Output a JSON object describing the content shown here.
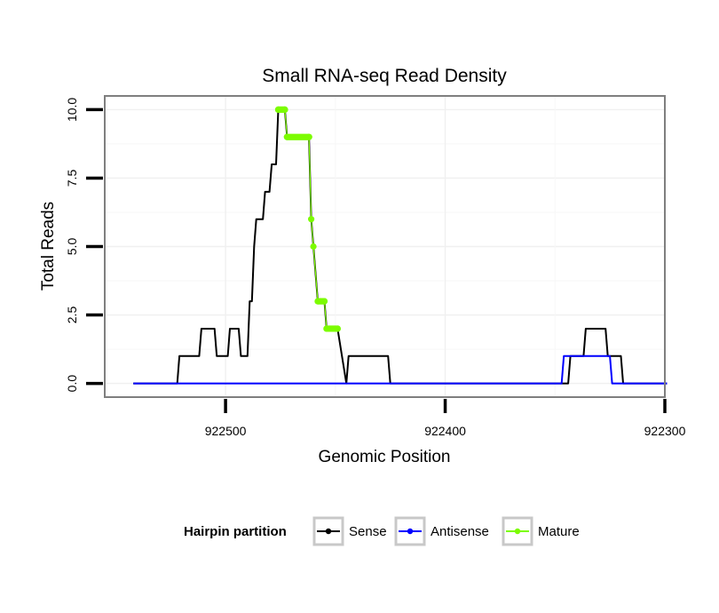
{
  "chart_data": {
    "type": "line",
    "title": "Small RNA-seq Read Density",
    "xlabel": "Genomic Position",
    "ylabel": "Total Reads",
    "x_reversed": true,
    "xlim": [
      922555,
      922300
    ],
    "ylim": [
      -0.5,
      10.5
    ],
    "x_ticks": [
      922500,
      922400,
      922300
    ],
    "x_tick_labels": [
      "922500",
      "922400",
      "922300"
    ],
    "y_ticks": [
      0,
      2.5,
      5,
      7.5,
      10
    ],
    "y_tick_labels": [
      "0.0",
      "2.5",
      "5.0",
      "7.5",
      "10.0"
    ],
    "grid": true,
    "legend": {
      "title": "Hairpin partition",
      "position": "bottom",
      "entries": [
        {
          "name": "Sense",
          "color": "#000000"
        },
        {
          "name": "Antisense",
          "color": "#0000ff"
        },
        {
          "name": "Mature",
          "color": "#7cfc00"
        }
      ]
    },
    "series": [
      {
        "name": "Sense",
        "color": "#000000",
        "points": [
          [
            922542,
            0
          ],
          [
            922522,
            0
          ],
          [
            922521,
            1
          ],
          [
            922512,
            1
          ],
          [
            922511,
            2
          ],
          [
            922505,
            2
          ],
          [
            922504,
            1
          ],
          [
            922499,
            1
          ],
          [
            922498,
            2
          ],
          [
            922494,
            2
          ],
          [
            922493,
            1
          ],
          [
            922490,
            1
          ],
          [
            922489,
            3
          ],
          [
            922488,
            3
          ],
          [
            922487,
            5
          ],
          [
            922486,
            6
          ],
          [
            922483,
            6
          ],
          [
            922482,
            7
          ],
          [
            922480,
            7
          ],
          [
            922479,
            8
          ],
          [
            922477,
            8
          ],
          [
            922476,
            10
          ],
          [
            922473,
            10
          ],
          [
            922472,
            9
          ],
          [
            922462,
            9
          ],
          [
            922461,
            6
          ],
          [
            922460,
            5
          ],
          [
            922458,
            3
          ],
          [
            922455,
            3
          ],
          [
            922454,
            2
          ],
          [
            922449,
            2
          ],
          [
            922445,
            0
          ],
          [
            922444,
            1
          ],
          [
            922426,
            1
          ],
          [
            922425,
            0
          ],
          [
            922344,
            0
          ],
          [
            922343,
            1
          ],
          [
            922337,
            1
          ],
          [
            922336,
            2
          ],
          [
            922327,
            2
          ],
          [
            922326,
            1
          ],
          [
            922320,
            1
          ],
          [
            922319,
            0
          ],
          [
            922299,
            0
          ]
        ]
      },
      {
        "name": "Antisense",
        "color": "#0000ff",
        "points": [
          [
            922542,
            0
          ],
          [
            922347,
            0
          ],
          [
            922346,
            1
          ],
          [
            922325,
            1
          ],
          [
            922324,
            0
          ],
          [
            922299,
            0
          ]
        ]
      },
      {
        "name": "Mature",
        "color": "#7cfc00",
        "points": [
          [
            922476,
            10
          ],
          [
            922473,
            10
          ],
          [
            922472,
            9
          ],
          [
            922462,
            9
          ],
          [
            922461,
            6
          ],
          [
            922460,
            5
          ],
          [
            922458,
            3
          ],
          [
            922455,
            3
          ],
          [
            922454,
            2
          ],
          [
            922449,
            2
          ]
        ]
      }
    ]
  }
}
